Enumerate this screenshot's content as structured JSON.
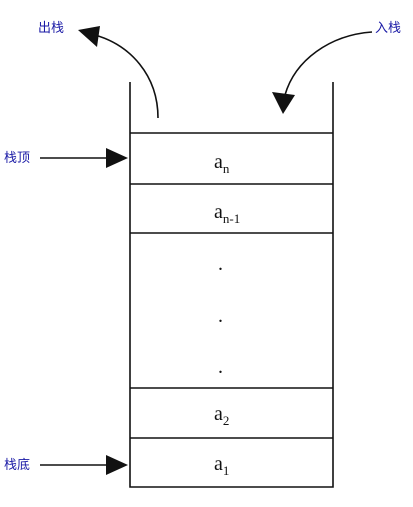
{
  "labels": {
    "pop": "出栈",
    "push": "入栈",
    "top": "栈顶",
    "bottom": "栈底"
  },
  "cells": [
    {
      "base": "a",
      "sub": "n"
    },
    {
      "base": "a",
      "sub": "n-1"
    },
    {
      "ellipsis": "."
    },
    {
      "base": "a",
      "sub": "2"
    },
    {
      "base": "a",
      "sub": "1"
    }
  ],
  "colors": {
    "line": "#111111",
    "label": "#1a1aa6"
  }
}
